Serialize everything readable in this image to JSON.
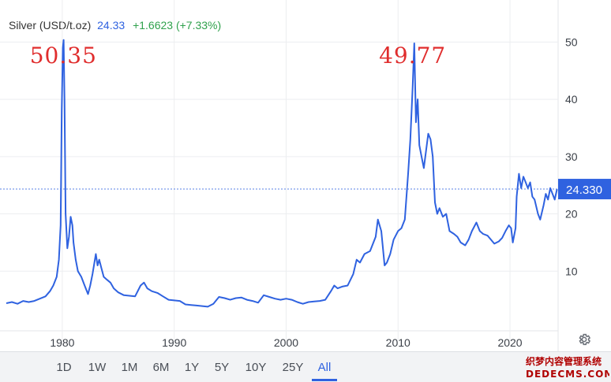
{
  "header": {
    "symbol": "Silver (USD/t.oz)",
    "price": "24.33",
    "change": "+1.6623 (+7.33%)"
  },
  "price_tag": "24.330",
  "annotations": [
    {
      "label": "50.35",
      "x": 1980.1,
      "y": 50.35
    },
    {
      "label": "49.77",
      "x": 2011.3,
      "y": 49.77
    }
  ],
  "ranges": [
    "1D",
    "1W",
    "1M",
    "6M",
    "1Y",
    "5Y",
    "10Y",
    "25Y",
    "All"
  ],
  "active_range": "All",
  "watermark": {
    "line1": "织梦内容管理系统",
    "line2": "DEDECMS.COM"
  },
  "colors": {
    "line": "#2f62e0",
    "change": "#2fa14c",
    "annotation": "#e02d2d",
    "price_tag_bg": "#2f62e0"
  },
  "chart_data": {
    "type": "line",
    "title": "",
    "xlabel": "",
    "ylabel": "",
    "xlim": [
      1975,
      2024.3
    ],
    "ylim": [
      0,
      55
    ],
    "xticks": [
      1980,
      1990,
      2000,
      2010,
      2020
    ],
    "yticks": [
      10,
      20,
      30,
      40,
      50
    ],
    "grid": true,
    "current_value": 24.33,
    "series": [
      {
        "name": "",
        "x": [
          1975.0,
          1975.5,
          1976.0,
          1976.5,
          1977.0,
          1977.5,
          1978.0,
          1978.5,
          1978.9,
          1979.2,
          1979.5,
          1979.7,
          1979.85,
          1979.95,
          1980.05,
          1980.12,
          1980.2,
          1980.3,
          1980.45,
          1980.6,
          1980.75,
          1980.9,
          1981.0,
          1981.2,
          1981.4,
          1981.7,
          1982.0,
          1982.3,
          1982.5,
          1982.7,
          1983.0,
          1983.15,
          1983.3,
          1983.5,
          1983.7,
          1984.0,
          1984.3,
          1984.6,
          1985.0,
          1985.5,
          1986.0,
          1986.5,
          1987.0,
          1987.3,
          1987.6,
          1988.0,
          1988.5,
          1989.0,
          1989.5,
          1990.0,
          1990.5,
          1991.0,
          1991.5,
          1992.0,
          1992.5,
          1993.0,
          1993.5,
          1994.0,
          1994.5,
          1995.0,
          1995.5,
          1996.0,
          1996.5,
          1997.0,
          1997.5,
          1998.0,
          1998.5,
          1999.0,
          1999.5,
          2000.0,
          2000.5,
          2001.0,
          2001.5,
          2002.0,
          2002.5,
          2003.0,
          2003.5,
          2004.0,
          2004.3,
          2004.6,
          2005.0,
          2005.5,
          2006.0,
          2006.3,
          2006.6,
          2007.0,
          2007.5,
          2008.0,
          2008.2,
          2008.5,
          2008.8,
          2009.0,
          2009.3,
          2009.6,
          2010.0,
          2010.3,
          2010.6,
          2010.9,
          2011.1,
          2011.3,
          2011.45,
          2011.6,
          2011.75,
          2011.9,
          2012.1,
          2012.3,
          2012.5,
          2012.7,
          2012.9,
          2013.1,
          2013.3,
          2013.5,
          2013.7,
          2014.0,
          2014.3,
          2014.6,
          2015.0,
          2015.3,
          2015.6,
          2016.0,
          2016.3,
          2016.6,
          2017.0,
          2017.3,
          2017.6,
          2018.0,
          2018.3,
          2018.6,
          2019.0,
          2019.3,
          2019.6,
          2019.9,
          2020.1,
          2020.25,
          2020.5,
          2020.6,
          2020.8,
          2021.0,
          2021.2,
          2021.4,
          2021.6,
          2021.8,
          2022.0,
          2022.2,
          2022.5,
          2022.7,
          2023.0,
          2023.2,
          2023.4,
          2023.6,
          2023.8,
          2024.0,
          2024.2
        ],
        "values": [
          4.4,
          4.6,
          4.3,
          4.8,
          4.6,
          4.8,
          5.2,
          5.6,
          6.5,
          7.5,
          9.0,
          12.0,
          18.0,
          38.0,
          49.0,
          50.35,
          40.0,
          20.0,
          14.0,
          16.0,
          19.5,
          18.0,
          15.0,
          12.0,
          10.0,
          9.0,
          7.5,
          6.0,
          7.5,
          9.5,
          13.0,
          11.0,
          12.0,
          10.5,
          9.0,
          8.5,
          8.0,
          7.0,
          6.3,
          5.8,
          5.7,
          5.6,
          7.5,
          8.0,
          7.0,
          6.5,
          6.2,
          5.6,
          5.0,
          4.9,
          4.8,
          4.2,
          4.1,
          4.0,
          3.9,
          3.8,
          4.3,
          5.5,
          5.3,
          5.0,
          5.3,
          5.4,
          5.0,
          4.8,
          4.5,
          5.8,
          5.5,
          5.2,
          5.0,
          5.2,
          5.0,
          4.6,
          4.3,
          4.6,
          4.7,
          4.8,
          5.0,
          6.5,
          7.5,
          7.0,
          7.3,
          7.5,
          9.5,
          12.0,
          11.5,
          13.0,
          13.5,
          16.0,
          19.0,
          17.0,
          11.0,
          11.5,
          13.0,
          15.5,
          17.0,
          17.5,
          19.0,
          27.0,
          33.0,
          42.0,
          49.77,
          36.0,
          40.0,
          32.0,
          30.0,
          28.0,
          31.0,
          34.0,
          33.0,
          30.0,
          22.0,
          20.0,
          21.0,
          19.5,
          20.0,
          17.0,
          16.5,
          16.0,
          15.0,
          14.5,
          15.5,
          17.0,
          18.5,
          17.0,
          16.5,
          16.2,
          15.5,
          14.8,
          15.2,
          15.8,
          17.0,
          18.0,
          17.5,
          15.0,
          17.5,
          23.0,
          27.0,
          24.5,
          26.5,
          25.5,
          24.5,
          25.5,
          23.0,
          22.5,
          20.0,
          19.0,
          21.5,
          23.5,
          22.5,
          24.5,
          23.5,
          22.5,
          24.3
        ]
      }
    ]
  }
}
